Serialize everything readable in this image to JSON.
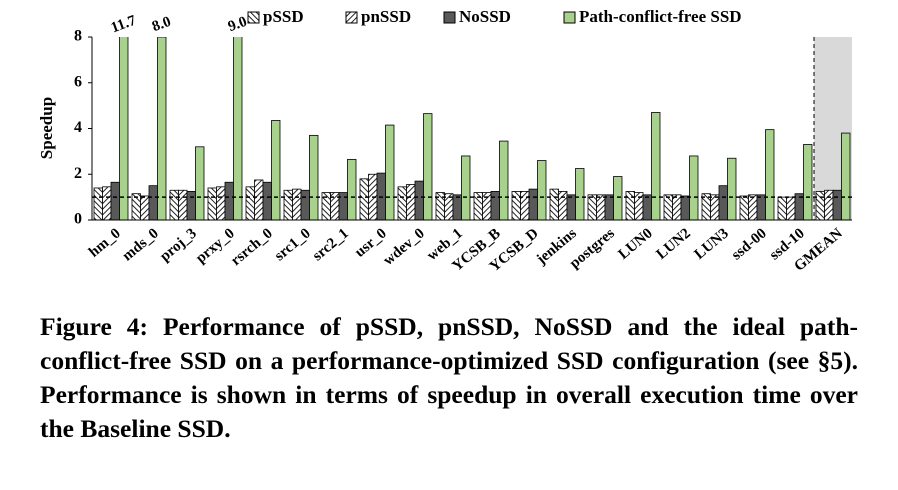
{
  "chart_data": {
    "type": "bar",
    "y_label": "Speedup",
    "categories": [
      "hm_0",
      "mds_0",
      "proj_3",
      "prxy_0",
      "rsrch_0",
      "src1_0",
      "src2_1",
      "usr_0",
      "wdev_0",
      "web_1",
      "YCSB_B",
      "YCSB_D",
      "jenkins",
      "postgres",
      "LUN0",
      "LUN2",
      "LUN3",
      "ssd-00",
      "ssd-10",
      "GMEAN"
    ],
    "series": [
      {
        "name": "pSSD",
        "color": "#222222",
        "hatch": "backslash",
        "values": [
          1.4,
          1.15,
          1.3,
          1.4,
          1.45,
          1.3,
          1.2,
          1.8,
          1.45,
          1.2,
          1.2,
          1.25,
          1.35,
          1.1,
          1.25,
          1.1,
          1.15,
          1.05,
          1.0,
          1.25
        ]
      },
      {
        "name": "pnSSD",
        "color": "#222222",
        "hatch": "slash",
        "values": [
          1.45,
          1.05,
          1.3,
          1.45,
          1.75,
          1.35,
          1.2,
          2.0,
          1.55,
          1.15,
          1.2,
          1.25,
          1.25,
          1.1,
          1.2,
          1.1,
          1.1,
          1.1,
          1.0,
          1.3
        ]
      },
      {
        "name": "NoSSD",
        "color": "#595959",
        "values": [
          1.65,
          1.5,
          1.25,
          1.65,
          1.65,
          1.3,
          1.2,
          2.05,
          1.7,
          1.1,
          1.25,
          1.35,
          1.1,
          1.1,
          1.1,
          1.05,
          1.5,
          1.1,
          1.15,
          1.3
        ]
      },
      {
        "name": "Path-conflict-free SSD",
        "color": "#a9d18e",
        "values": [
          11.7,
          8.0,
          3.2,
          9.0,
          4.35,
          3.7,
          2.65,
          4.15,
          4.65,
          2.8,
          3.45,
          2.6,
          2.25,
          1.9,
          4.7,
          2.8,
          2.7,
          3.95,
          3.3,
          3.8
        ],
        "value_labels": [
          "11.7",
          "8.0",
          null,
          "9.0",
          null,
          null,
          null,
          null,
          null,
          null,
          null,
          null,
          null,
          null,
          null,
          null,
          null,
          null,
          null,
          null
        ]
      }
    ],
    "ylim": [
      0,
      8
    ],
    "yticks": [
      0,
      2,
      4,
      6,
      8
    ],
    "baseline": 1,
    "caption": "Figure 4: Performance of pSSD, pnSSD, NoSSD and the ideal path-conflict-free SSD on a performance-optimized SSD configuration (see §5). Performance is shown in terms of speedup in overall execution time over the Baseline SSD."
  }
}
